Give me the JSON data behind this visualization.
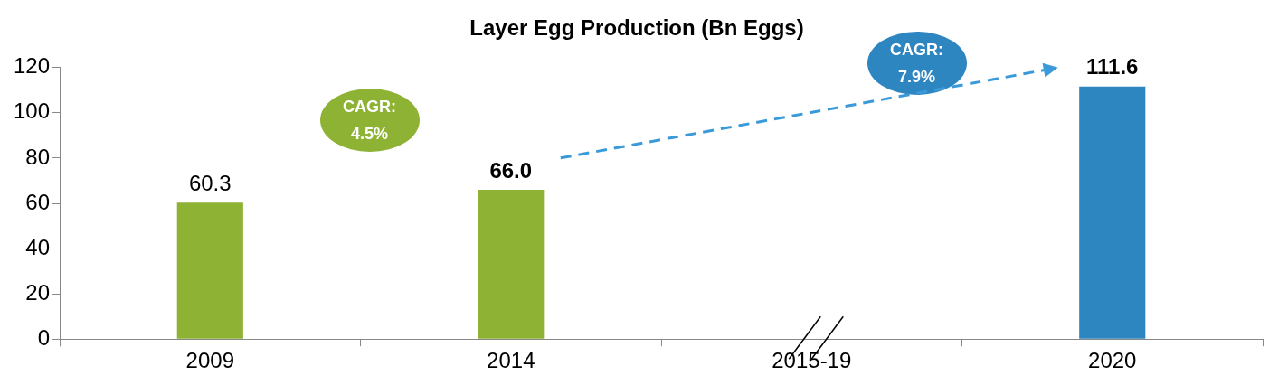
{
  "chart_data": {
    "type": "bar",
    "title": "Layer Egg Production (Bn Eggs)",
    "categories": [
      "2009",
      "2014",
      "2015-19",
      "2020"
    ],
    "values": [
      60.3,
      66.0,
      null,
      111.6
    ],
    "colors": [
      "#8db234",
      "#8db234",
      "#8db234",
      "#2e86c1"
    ],
    "value_labels": [
      "60.3",
      "66.0",
      null,
      "111.6"
    ],
    "ylim": [
      0,
      120
    ],
    "yticks": [
      0,
      20,
      40,
      60,
      80,
      100,
      120
    ],
    "grid": false,
    "legend": false,
    "annotations": [
      "CAGR: 4.5%",
      "CAGR: 7.9%"
    ]
  }
}
